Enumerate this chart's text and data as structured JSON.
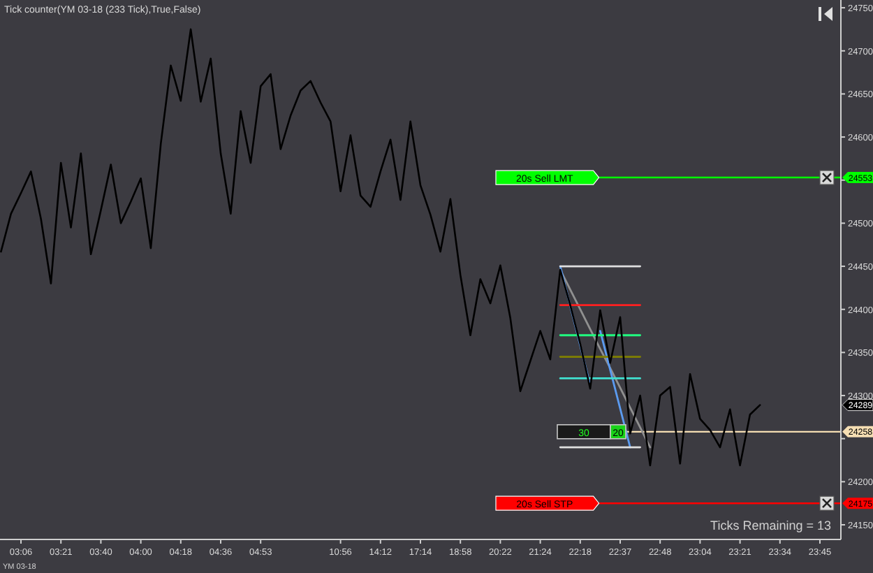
{
  "chart_data": {
    "type": "line",
    "title": "Tick counter(YM 03-18 (233 Tick),True,False)",
    "categories": [
      null,
      null,
      "03:06",
      null,
      null,
      null,
      "03:21",
      null,
      null,
      null,
      "03:40",
      null,
      null,
      null,
      "04:00",
      null,
      null,
      null,
      "04:18",
      null,
      null,
      null,
      "04:36",
      null,
      null,
      null,
      "04:53",
      null,
      null,
      null,
      null,
      null,
      null,
      null,
      "10:56",
      null,
      null,
      null,
      "14:12",
      null,
      null,
      null,
      "17:14",
      null,
      null,
      null,
      "18:58",
      null,
      null,
      null,
      "20:22",
      null,
      null,
      null,
      "21:24",
      null,
      null,
      null,
      "22:18",
      null,
      null,
      null,
      "22:37",
      null,
      null,
      null,
      "22:48",
      null,
      null,
      null,
      "23:04",
      null,
      null,
      null,
      "23:21",
      null,
      null,
      null,
      "23:34",
      null,
      null,
      null,
      "23:45",
      null,
      null
    ],
    "ylim": [
      24133,
      24759
    ],
    "yticks": [
      24150,
      24200,
      {
        "value": 24250,
        "label": null
      },
      24300,
      24350,
      24400,
      24450,
      24500,
      {
        "value": 24550,
        "label": null
      },
      24600,
      24650,
      24700,
      24750
    ],
    "grid": false,
    "marker": "none",
    "line_style": "solid",
    "series": [
      {
        "color": "#000000",
        "values": [
          24467,
          24511,
          24535,
          24560,
          24505,
          24430,
          24570,
          24495,
          24581,
          24464,
          24515,
          24568,
          24500,
          24525,
          24552,
          24471,
          24592,
          24683,
          24642,
          24725,
          24641,
          24691,
          24581,
          24511,
          24630,
          24570,
          24659,
          24673,
          24586,
          24625,
          24654,
          24665,
          24640,
          24618,
          24537,
          24602,
          24532,
          24519,
          24560,
          24597,
          24527,
          24618,
          24544,
          24510,
          24467,
          24528,
          24440,
          24370,
          24435,
          24407,
          24451,
          24390,
          24305,
          24340,
          24375,
          24342,
          24446,
          24405,
          24360,
          24308,
          24399,
          24338,
          24391,
          24256,
          24300,
          24219,
          24300,
          24310,
          24221,
          24325,
          24273,
          24260,
          24240,
          24284,
          24219,
          24278,
          24289,
          null,
          null,
          null,
          null,
          null,
          null,
          null,
          null
        ]
      },
      {
        "color": "#e0e0e0",
        "values": [
          null,
          null,
          null,
          null,
          null,
          null,
          null,
          null,
          null,
          null,
          null,
          null,
          null,
          null,
          null,
          null,
          null,
          null,
          null,
          null,
          null,
          null,
          null,
          null,
          null,
          null,
          null,
          null,
          null,
          null,
          null,
          null,
          null,
          null,
          null,
          null,
          null,
          null,
          null,
          null,
          null,
          null,
          null,
          null,
          null,
          null,
          null,
          null,
          null,
          null,
          null,
          null,
          null,
          null,
          null,
          null,
          24450,
          24450,
          24450,
          24450,
          24450,
          24450,
          24450,
          24450,
          24450,
          null,
          null,
          null,
          null,
          null,
          null,
          null,
          null,
          null,
          null,
          null,
          null,
          null,
          null,
          null,
          null,
          null,
          null,
          null,
          null
        ]
      },
      {
        "color": "#ff2020",
        "values": [
          null,
          null,
          null,
          null,
          null,
          null,
          null,
          null,
          null,
          null,
          null,
          null,
          null,
          null,
          null,
          null,
          null,
          null,
          null,
          null,
          null,
          null,
          null,
          null,
          null,
          null,
          null,
          null,
          null,
          null,
          null,
          null,
          null,
          null,
          null,
          null,
          null,
          null,
          null,
          null,
          null,
          null,
          null,
          null,
          null,
          null,
          null,
          null,
          null,
          null,
          null,
          null,
          null,
          null,
          null,
          null,
          24405,
          24405,
          24405,
          24405,
          24405,
          24405,
          24405,
          24405,
          24405,
          null,
          null,
          null,
          null,
          null,
          null,
          null,
          null,
          null,
          null,
          null,
          null,
          null,
          null,
          null,
          null,
          null,
          null,
          null,
          null
        ]
      },
      {
        "color": "#20ff80",
        "values": [
          null,
          null,
          null,
          null,
          null,
          null,
          null,
          null,
          null,
          null,
          null,
          null,
          null,
          null,
          null,
          null,
          null,
          null,
          null,
          null,
          null,
          null,
          null,
          null,
          null,
          null,
          null,
          null,
          null,
          null,
          null,
          null,
          null,
          null,
          null,
          null,
          null,
          null,
          null,
          null,
          null,
          null,
          null,
          null,
          null,
          null,
          null,
          null,
          null,
          null,
          null,
          null,
          null,
          null,
          null,
          null,
          24370,
          24370,
          24370,
          24370,
          24370,
          24370,
          24370,
          24370,
          24370,
          null,
          null,
          null,
          null,
          null,
          null,
          null,
          null,
          null,
          null,
          null,
          null,
          null,
          null,
          null,
          null,
          null,
          null,
          null,
          null
        ]
      },
      {
        "color": "#808000",
        "values": [
          null,
          null,
          null,
          null,
          null,
          null,
          null,
          null,
          null,
          null,
          null,
          null,
          null,
          null,
          null,
          null,
          null,
          null,
          null,
          null,
          null,
          null,
          null,
          null,
          null,
          null,
          null,
          null,
          null,
          null,
          null,
          null,
          null,
          null,
          null,
          null,
          null,
          null,
          null,
          null,
          null,
          null,
          null,
          null,
          null,
          null,
          null,
          null,
          null,
          null,
          null,
          null,
          null,
          null,
          null,
          null,
          24345,
          24345,
          24345,
          24345,
          24345,
          24345,
          24345,
          24345,
          24345,
          null,
          null,
          null,
          null,
          null,
          null,
          null,
          null,
          null,
          null,
          null,
          null,
          null,
          null,
          null,
          null,
          null,
          null,
          null,
          null
        ]
      },
      {
        "color": "#40e0d0",
        "values": [
          null,
          null,
          null,
          null,
          null,
          null,
          null,
          null,
          null,
          null,
          null,
          null,
          null,
          null,
          null,
          null,
          null,
          null,
          null,
          null,
          null,
          null,
          null,
          null,
          null,
          null,
          null,
          null,
          null,
          null,
          null,
          null,
          null,
          null,
          null,
          null,
          null,
          null,
          null,
          null,
          null,
          null,
          null,
          null,
          null,
          null,
          null,
          null,
          null,
          null,
          null,
          null,
          null,
          null,
          null,
          null,
          24320,
          24320,
          24320,
          24320,
          24320,
          24320,
          24320,
          24320,
          24320,
          null,
          null,
          null,
          null,
          null,
          null,
          null,
          null,
          null,
          null,
          null,
          null,
          null,
          null,
          null,
          null,
          null,
          null,
          null,
          null
        ]
      },
      {
        "color": "#e0e0e0",
        "values": [
          null,
          null,
          null,
          null,
          null,
          null,
          null,
          null,
          null,
          null,
          null,
          null,
          null,
          null,
          null,
          null,
          null,
          null,
          null,
          null,
          null,
          null,
          null,
          null,
          null,
          null,
          null,
          null,
          null,
          null,
          null,
          null,
          null,
          null,
          null,
          null,
          null,
          null,
          null,
          null,
          null,
          null,
          null,
          null,
          null,
          null,
          null,
          null,
          null,
          null,
          null,
          null,
          null,
          null,
          null,
          null,
          24240,
          24240,
          24240,
          24240,
          24240,
          24240,
          24240,
          24240,
          24240,
          null,
          null,
          null,
          null,
          null,
          null,
          null,
          null,
          null,
          null,
          null,
          null,
          null,
          null,
          null,
          null,
          null,
          null,
          null,
          null
        ]
      },
      {
        "color": "#5b9bf0",
        "values": [
          null,
          null,
          null,
          null,
          null,
          null,
          null,
          null,
          null,
          null,
          null,
          null,
          null,
          null,
          null,
          null,
          null,
          null,
          null,
          null,
          null,
          null,
          null,
          null,
          null,
          null,
          null,
          null,
          null,
          null,
          null,
          null,
          null,
          null,
          null,
          null,
          null,
          null,
          null,
          null,
          null,
          null,
          null,
          null,
          null,
          null,
          null,
          null,
          null,
          null,
          null,
          null,
          null,
          null,
          null,
          null,
          24450,
          24404,
          24358,
          24312,
          null,
          null,
          null,
          null,
          null,
          null,
          null,
          null,
          null,
          null,
          null,
          null,
          null,
          null,
          null,
          null,
          null,
          null,
          null,
          null,
          null,
          null,
          null,
          null,
          null
        ]
      },
      {
        "color": "#5b9bf0",
        "values": [
          null,
          null,
          null,
          null,
          null,
          null,
          null,
          null,
          null,
          null,
          null,
          null,
          null,
          null,
          null,
          null,
          null,
          null,
          null,
          null,
          null,
          null,
          null,
          null,
          null,
          null,
          null,
          null,
          null,
          null,
          null,
          null,
          null,
          null,
          null,
          null,
          null,
          null,
          null,
          null,
          null,
          null,
          null,
          null,
          null,
          null,
          null,
          null,
          null,
          null,
          null,
          null,
          null,
          null,
          null,
          null,
          null,
          null,
          null,
          null,
          24375,
          24330,
          24285,
          24240,
          null,
          null,
          null,
          null,
          null,
          null,
          null,
          null,
          null,
          null,
          null,
          null,
          null,
          null,
          null,
          null,
          null,
          null,
          null,
          null,
          null
        ]
      },
      {
        "color": "#909090",
        "values": [
          null,
          null,
          null,
          null,
          null,
          null,
          null,
          null,
          null,
          null,
          null,
          null,
          null,
          null,
          null,
          null,
          null,
          null,
          null,
          null,
          null,
          null,
          null,
          null,
          null,
          null,
          null,
          null,
          null,
          null,
          null,
          null,
          null,
          null,
          null,
          null,
          null,
          null,
          null,
          null,
          null,
          null,
          null,
          null,
          null,
          null,
          null,
          null,
          null,
          null,
          null,
          null,
          null,
          null,
          null,
          null,
          24446,
          24423,
          24400,
          24377,
          24354,
          24332,
          24309,
          24286,
          24263,
          24240,
          null,
          null,
          null,
          null,
          null,
          null,
          null,
          null,
          null,
          null,
          null,
          null,
          null,
          null,
          null,
          null,
          null,
          null,
          null
        ]
      }
    ],
    "ref_lines": [
      {
        "axis": "y",
        "value": 24553,
        "label": "20s  Sell LMT",
        "color": "#00ff00",
        "line_style": "solid"
      },
      {
        "axis": "y",
        "value": 24175,
        "label": "20s  Sell STP",
        "color": "#ff0000",
        "line_style": "solid"
      },
      {
        "axis": "y",
        "value": 24258,
        "label": null,
        "color": "#f5deb3",
        "line_style": "solid"
      }
    ],
    "annotations": [
      "30",
      "20",
      {
        "text": "24553",
        "y": 24553
      },
      {
        "text": "24289",
        "y": 24289
      },
      {
        "text": "24258",
        "y": 24258
      },
      {
        "text": "24175",
        "y": 24175
      },
      "Ticks Remaining = 13",
      "YM 03-18"
    ]
  }
}
